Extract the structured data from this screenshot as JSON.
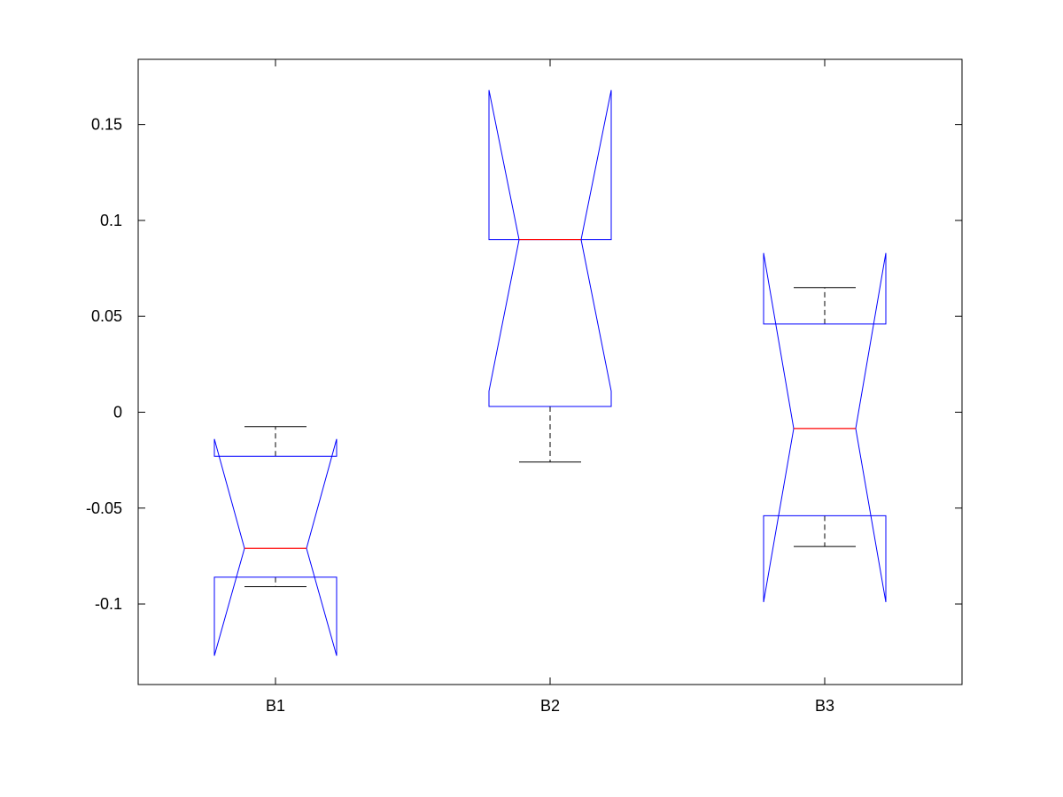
{
  "chart_data": {
    "type": "boxplot",
    "notched": true,
    "categories": [
      "B1",
      "B2",
      "B3"
    ],
    "boxes": [
      {
        "category": "B1",
        "q1": -0.086,
        "median": -0.071,
        "q3": -0.023,
        "whisker_low": -0.091,
        "whisker_high": -0.0075,
        "notch_low": -0.127,
        "notch_high": -0.014
      },
      {
        "category": "B2",
        "q1": 0.003,
        "median": 0.09,
        "q3": 0.09,
        "whisker_low": -0.026,
        "whisker_high": 0.09,
        "notch_low": 0.011,
        "notch_high": 0.168
      },
      {
        "category": "B3",
        "q1": -0.054,
        "median": -0.0085,
        "q3": 0.046,
        "whisker_low": -0.07,
        "whisker_high": 0.065,
        "notch_low": -0.099,
        "notch_high": 0.083
      }
    ],
    "yticks": [
      -0.1,
      -0.05,
      0,
      0.05,
      0.1,
      0.15
    ],
    "ytick_labels": [
      "-0.1",
      "-0.05",
      "0",
      "0.05",
      "0.1",
      "0.15"
    ],
    "ylim": [
      -0.142,
      0.184
    ],
    "grid": false,
    "colors": {
      "box": "#0000ff",
      "median": "#ff0000",
      "whisker": "#000000",
      "axes": "#000000"
    }
  }
}
